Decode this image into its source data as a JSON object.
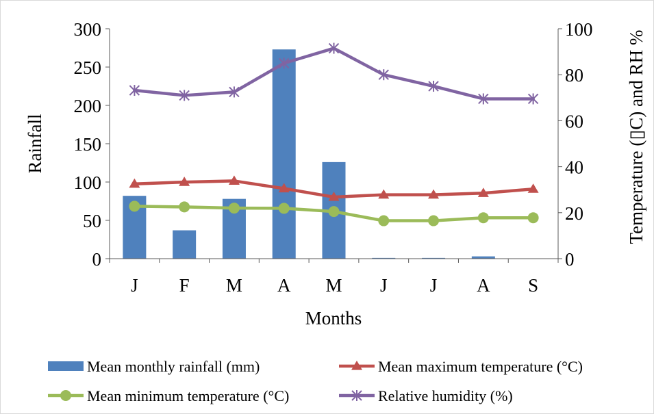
{
  "chart_data": {
    "type": "bar",
    "categories": [
      "J",
      "F",
      "M",
      "A",
      "M",
      "J",
      "J",
      "A",
      "S"
    ],
    "xlabel": "Months",
    "ylabel": "Rainfall",
    "y2label": "Temperature  (▯C) and RH %",
    "ylim": [
      0,
      300
    ],
    "y2lim": [
      0,
      100
    ],
    "yticks": [
      "0",
      "50",
      "100",
      "150",
      "200",
      "250",
      "300"
    ],
    "y2ticks": [
      "0",
      "20",
      "40",
      "60",
      "80",
      "100"
    ],
    "grid": false,
    "legend_placement": "bottom",
    "series": [
      {
        "name": "Mean monthly rainfall (mm)",
        "type": "bar",
        "axis": "left",
        "color": "#4f81bd",
        "values": [
          82,
          37,
          78,
          273,
          126,
          1,
          1,
          3,
          0
        ]
      },
      {
        "name": "Mean maximum temperature (°C)",
        "type": "line",
        "axis": "right",
        "color": "#c0504d",
        "marker": "triangle",
        "values": [
          32.5,
          33.3,
          33.8,
          30.5,
          26.8,
          27.8,
          27.8,
          28.5,
          30.3
        ]
      },
      {
        "name": "Mean minimum temperature (°C)",
        "type": "line",
        "axis": "right",
        "color": "#9bbb59",
        "marker": "circle",
        "values": [
          22.8,
          22.5,
          22.0,
          21.9,
          20.5,
          16.5,
          16.5,
          17.8,
          17.8
        ]
      },
      {
        "name": "Relative humidity (%)",
        "type": "line",
        "axis": "right",
        "color": "#8064a2",
        "marker": "star",
        "values": [
          73.2,
          71.0,
          72.5,
          85.0,
          91.5,
          80.0,
          75.0,
          69.5,
          69.5
        ]
      }
    ]
  }
}
